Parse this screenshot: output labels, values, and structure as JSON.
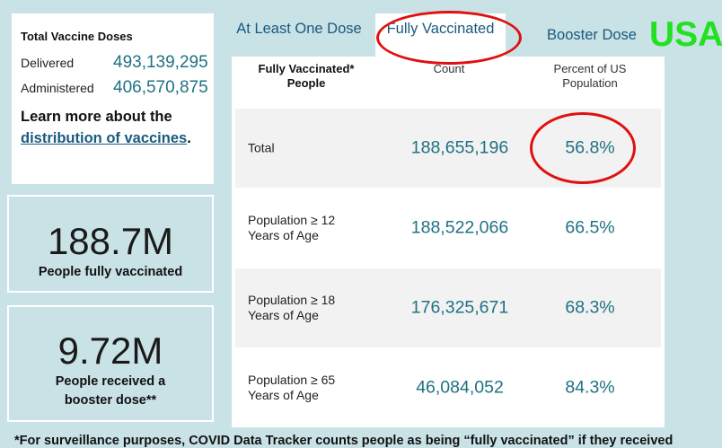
{
  "doses": {
    "title": "Total Vaccine Doses",
    "delivered_label": "Delivered",
    "delivered_value": "493,139,295",
    "administered_label": "Administered",
    "administered_value": "406,570,875",
    "learn_prefix": "Learn more about the",
    "learn_link": "distribution of vaccines",
    "learn_suffix": "."
  },
  "stats": [
    {
      "value": "188.7M",
      "caption": "People fully vaccinated"
    },
    {
      "value": "9.72M",
      "caption": "People received a booster dose**"
    }
  ],
  "tabs": [
    {
      "label": "At Least One Dose"
    },
    {
      "label": "Fully Vaccinated",
      "selected": true
    },
    {
      "label": "Booster Dose"
    }
  ],
  "overlay_label": "USA",
  "table": {
    "headers": [
      "Fully Vaccinated* People",
      "Count",
      "Percent of US Population"
    ],
    "rows": [
      {
        "label": "Total",
        "count": "188,655,196",
        "percent": "56.8%"
      },
      {
        "label": "Population ≥ 12 Years of Age",
        "count": "188,522,066",
        "percent": "66.5%"
      },
      {
        "label": "Population ≥ 18 Years of Age",
        "count": "176,325,671",
        "percent": "68.3%"
      },
      {
        "label": "Population ≥ 65 Years of Age",
        "count": "46,084,052",
        "percent": "84.3%"
      }
    ]
  },
  "annotation_color": "#e01010",
  "accent_color": "#1f7283",
  "footnote": "*For surveillance purposes, COVID Data Tracker counts people as being “fully vaccinated” if they received"
}
